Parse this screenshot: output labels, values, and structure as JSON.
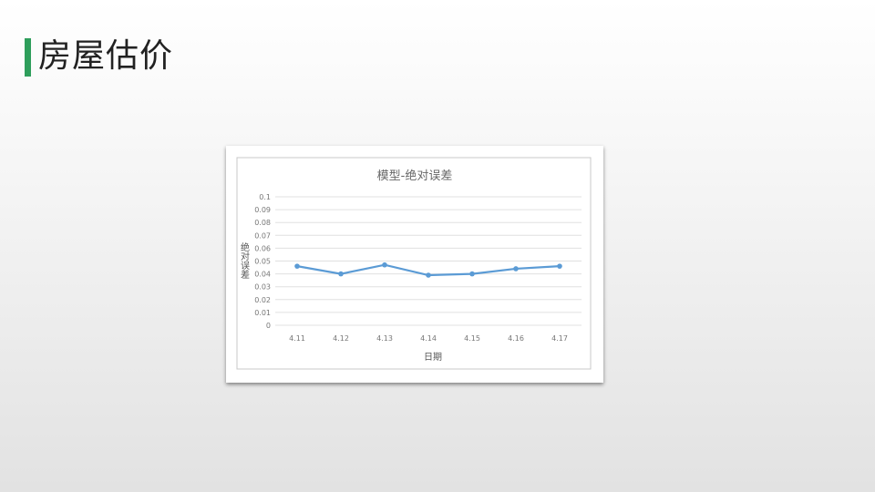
{
  "slide": {
    "title": "房屋估价",
    "accent_color": "#2e9e5b"
  },
  "chart_data": {
    "type": "line",
    "title": "模型-绝对误差",
    "xlabel": "日期",
    "ylabel": "绝对误差",
    "categories": [
      "4.11",
      "4.12",
      "4.13",
      "4.14",
      "4.15",
      "4.16",
      "4.17"
    ],
    "series": [
      {
        "values": [
          0.046,
          0.04,
          0.047,
          0.039,
          0.04,
          0.044,
          0.046
        ],
        "color": "#5b9bd5"
      }
    ],
    "ylim": [
      0,
      0.1
    ],
    "yticks": [
      "0",
      "0.01",
      "0.02",
      "0.03",
      "0.04",
      "0.05",
      "0.06",
      "0.07",
      "0.08",
      "0.09",
      "0.1"
    ],
    "grid": true,
    "legend": "none"
  }
}
